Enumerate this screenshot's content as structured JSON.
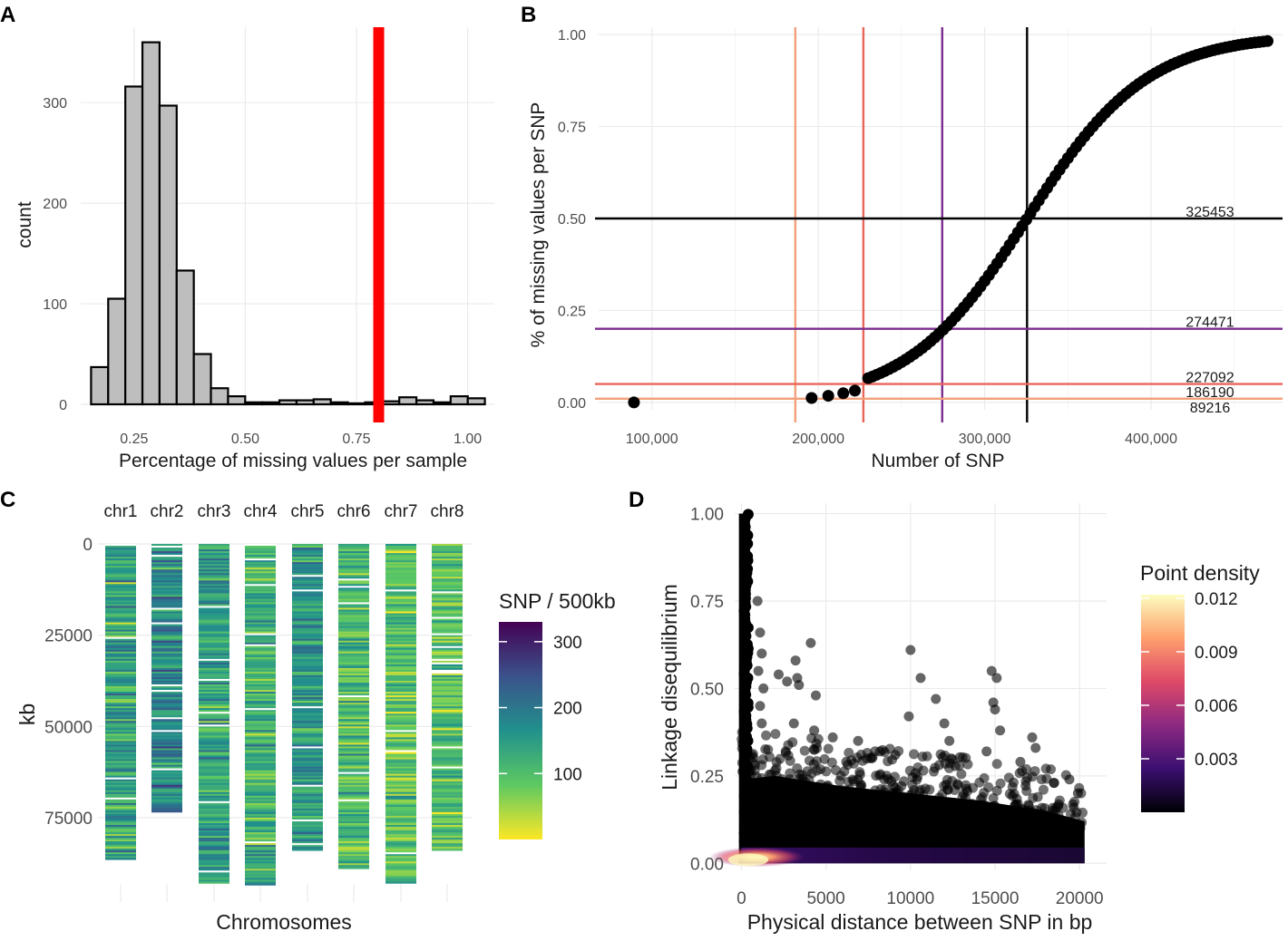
{
  "panels": {
    "A": "A",
    "B": "B",
    "C": "C",
    "D": "D"
  },
  "chart_data": [
    {
      "panel": "A",
      "type": "bar",
      "title": "",
      "xlabel": "Percentage of missing values per sample",
      "ylabel": "count",
      "xlim": [
        0.13,
        1.06
      ],
      "ylim": [
        0,
        375
      ],
      "xticks": [
        0.25,
        0.5,
        0.75,
        1.0
      ],
      "xtick_labels": [
        "0.25",
        "0.50",
        "0.75",
        "1.00"
      ],
      "yticks": [
        0,
        100,
        200,
        300
      ],
      "ytick_labels": [
        "0",
        "100",
        "200",
        "300"
      ],
      "bin_width": 0.0385,
      "bins": [
        0.1725,
        0.211,
        0.2495,
        0.288,
        0.3265,
        0.365,
        0.4035,
        0.442,
        0.4805,
        0.519,
        0.5575,
        0.596,
        0.6345,
        0.673,
        0.7115,
        0.75,
        0.7885,
        0.827,
        0.8655,
        0.904,
        0.9425,
        0.981,
        1.0195
      ],
      "values": [
        37,
        105,
        316,
        360,
        297,
        133,
        50,
        16,
        8,
        2,
        2,
        4,
        4,
        5,
        2,
        1,
        2,
        3,
        7,
        4,
        2,
        8,
        6
      ],
      "threshold_line": {
        "x": 0.8,
        "color": "#ff0000"
      },
      "bar_fill": "#bebebe",
      "bar_stroke": "#000000"
    },
    {
      "panel": "B",
      "type": "scatter",
      "xlabel": "Number of SNP",
      "ylabel": "% of missing values per SNP",
      "xlim": [
        68000,
        479000
      ],
      "ylim": [
        -0.02,
        1.02
      ],
      "xticks": [
        100000,
        200000,
        300000,
        400000
      ],
      "xtick_labels": [
        "100,000",
        "200,000",
        "300,000",
        "400,000"
      ],
      "yticks": [
        0,
        0.25,
        0.5,
        0.75,
        1.0
      ],
      "ytick_labels": [
        "0.00",
        "0.25",
        "0.50",
        "0.75",
        "1.00"
      ],
      "curve": {
        "midpoint": 325453,
        "scale": 36000,
        "x_start": 230000,
        "x_end": 470000,
        "step": 2500
      },
      "isolated_points": [
        {
          "x": 89216,
          "y": 0.0
        },
        {
          "x": 196000,
          "y": 0.012
        },
        {
          "x": 206000,
          "y": 0.018
        },
        {
          "x": 215000,
          "y": 0.025
        },
        {
          "x": 222000,
          "y": 0.032
        }
      ],
      "hlines": [
        {
          "y": 0.5,
          "color": "#000000",
          "label": "325453"
        },
        {
          "y": 0.2,
          "color": "#7b2d8e",
          "label": "274471"
        },
        {
          "y": 0.05,
          "color": "#e9655a",
          "label": "227092"
        },
        {
          "y": 0.01,
          "color": "#f3a07a",
          "label": "186190"
        },
        {
          "y": 0.0,
          "color": "#ffffff",
          "label": "89216"
        }
      ],
      "vlines": [
        {
          "x": 325453,
          "color": "#000000"
        },
        {
          "x": 274471,
          "color": "#7b2d8e"
        },
        {
          "x": 227092,
          "color": "#e9655a"
        },
        {
          "x": 186190,
          "color": "#f3a07a"
        }
      ]
    },
    {
      "panel": "C",
      "type": "heatmap",
      "xlabel": "Chromosomes",
      "ylabel": "kb",
      "ylim": [
        0,
        93000
      ],
      "yticks": [
        0,
        25000,
        50000,
        75000
      ],
      "ytick_labels": [
        "0",
        "25000",
        "50000",
        "75000"
      ],
      "chromosomes": [
        "chr1",
        "chr2",
        "chr3",
        "chr4",
        "chr5",
        "chr6",
        "chr7",
        "chr8"
      ],
      "lengths_kb": [
        86500,
        73500,
        92800,
        93300,
        83700,
        88800,
        92800,
        83800
      ],
      "window_kb": 500,
      "legend_title": "SNP / 500kb",
      "legend_ticks": [
        100,
        200,
        300
      ],
      "legend_tick_labels": [
        "100",
        "200",
        "300"
      ],
      "value_range": [
        0,
        330
      ],
      "colormap": [
        "#fde725",
        "#5ec962",
        "#21918c",
        "#3b528b",
        "#440154"
      ]
    },
    {
      "panel": "D",
      "type": "scatter",
      "xlabel": "Physical distance between SNP in bp",
      "ylabel": "Linkage disequilibrium",
      "xlim": [
        -400,
        21600
      ],
      "ylim": [
        -0.02,
        1.03
      ],
      "xticks": [
        0,
        5000,
        10000,
        15000,
        20000
      ],
      "xtick_labels": [
        "0",
        "5000",
        "10000",
        "15000",
        "20000"
      ],
      "yticks": [
        0,
        0.25,
        0.5,
        0.75,
        1.0
      ],
      "ytick_labels": [
        "0.00",
        "0.25",
        "0.50",
        "0.75",
        "1.00"
      ],
      "legend_title": "Point density",
      "legend_ticks": [
        0.003,
        0.006,
        0.009,
        0.012
      ],
      "legend_tick_labels": [
        "0.003",
        "0.006",
        "0.009",
        "0.012"
      ],
      "legend_range": [
        0.0,
        0.0122
      ],
      "colormap": [
        "#000004",
        "#3b0f70",
        "#8c2981",
        "#de4968",
        "#fe9f6d",
        "#fcfdbf"
      ],
      "outliers": [
        {
          "x": 1100,
          "y": 0.66
        },
        {
          "x": 950,
          "y": 0.75
        },
        {
          "x": 1200,
          "y": 0.6
        },
        {
          "x": 1000,
          "y": 0.55
        },
        {
          "x": 1300,
          "y": 0.5
        },
        {
          "x": 1100,
          "y": 0.45
        },
        {
          "x": 1200,
          "y": 0.4
        },
        {
          "x": 2200,
          "y": 0.54
        },
        {
          "x": 3200,
          "y": 0.58
        },
        {
          "x": 3300,
          "y": 0.53
        },
        {
          "x": 3400,
          "y": 0.51
        },
        {
          "x": 4100,
          "y": 0.63
        },
        {
          "x": 4400,
          "y": 0.48
        },
        {
          "x": 4300,
          "y": 0.38
        },
        {
          "x": 3100,
          "y": 0.4
        },
        {
          "x": 2700,
          "y": 0.52
        },
        {
          "x": 5400,
          "y": 0.36
        },
        {
          "x": 6900,
          "y": 0.35
        },
        {
          "x": 10000,
          "y": 0.61
        },
        {
          "x": 9900,
          "y": 0.42
        },
        {
          "x": 10600,
          "y": 0.53
        },
        {
          "x": 11500,
          "y": 0.47
        },
        {
          "x": 12000,
          "y": 0.4
        },
        {
          "x": 12300,
          "y": 0.35
        },
        {
          "x": 12400,
          "y": 0.3
        },
        {
          "x": 14800,
          "y": 0.55
        },
        {
          "x": 15100,
          "y": 0.53
        },
        {
          "x": 14900,
          "y": 0.46
        },
        {
          "x": 15000,
          "y": 0.44
        },
        {
          "x": 15300,
          "y": 0.38
        },
        {
          "x": 14500,
          "y": 0.32
        },
        {
          "x": 17200,
          "y": 0.36
        },
        {
          "x": 17400,
          "y": 0.33
        },
        {
          "x": 16500,
          "y": 0.29
        },
        {
          "x": 8200,
          "y": 0.32
        },
        {
          "x": 9100,
          "y": 0.31
        },
        {
          "x": 6200,
          "y": 0.29
        },
        {
          "x": 18500,
          "y": 0.23
        },
        {
          "x": 19400,
          "y": 0.24
        },
        {
          "x": 19900,
          "y": 0.2
        }
      ]
    }
  ]
}
